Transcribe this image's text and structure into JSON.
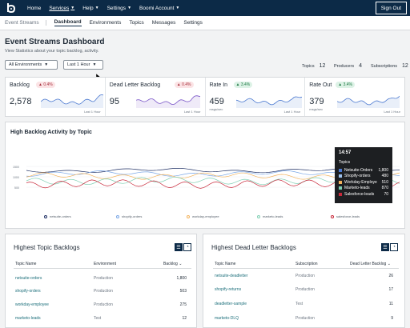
{
  "topnav": {
    "logo_icon": "boomi-b-logo-icon",
    "items": [
      {
        "label": "Home",
        "caret": false,
        "active": false
      },
      {
        "label": "Services",
        "caret": true,
        "active": true
      },
      {
        "label": "Help",
        "caret": true,
        "active": false
      },
      {
        "label": "Settings",
        "caret": true,
        "active": false
      },
      {
        "label": "Boomi Account",
        "caret": true,
        "active": false
      }
    ],
    "sign_out": "Sign Out"
  },
  "subnav": {
    "brand": "Event Streams",
    "tabs": [
      "Dashboard",
      "Environments",
      "Topics",
      "Messages",
      "Settings"
    ],
    "active": "Dashboard"
  },
  "page": {
    "title": "Event Streams Dashboard",
    "description": "View Statistics about your topic backlog, activity."
  },
  "filters": {
    "environment": "All Environments",
    "period": "Last 1 Hour"
  },
  "counts": [
    {
      "label": "Topics",
      "value": "12"
    },
    {
      "label": "Producers",
      "value": "4"
    },
    {
      "label": "Subscriptions",
      "value": "12"
    }
  ],
  "stats": [
    {
      "title": "Backlog",
      "change": "0.4%",
      "direction": "down",
      "value": "2,578",
      "unit": "",
      "period": "Last 1 Hour",
      "color": "#4a78d0"
    },
    {
      "title": "Dead Letter Backlog",
      "change": "0.4%",
      "direction": "down",
      "value": "95",
      "unit": "",
      "period": "Last 1 Hour",
      "color": "#7a56c8"
    },
    {
      "title": "Rate In",
      "change": "3.4%",
      "direction": "up",
      "value": "459",
      "unit": "msgs/sec",
      "period": "Last 1 Hour",
      "color": "#4a78d0"
    },
    {
      "title": "Rate Out",
      "change": "3.4%",
      "direction": "up",
      "value": "379",
      "unit": "msgs/sec",
      "period": "Last 1 Hour",
      "color": "#4a78d0"
    }
  ],
  "activity": {
    "title": "High Backlog Activity by Topic",
    "y_ticks": [
      "1500",
      "1000",
      "500"
    ],
    "legend": [
      {
        "name": "netsuite-orders",
        "color": "#1d2e63"
      },
      {
        "name": "shopify-orders",
        "color": "#7aa7e6"
      },
      {
        "name": "workday-employee",
        "color": "#f2b25c"
      },
      {
        "name": "marketo-leads",
        "color": "#7fcfb3"
      },
      {
        "name": "salesforce-leads",
        "color": "#c8283a"
      }
    ],
    "tooltip": {
      "time": "14:57",
      "heading": "Topics",
      "rows": [
        {
          "name": "Netsuite-Orders",
          "value": "1,800",
          "color": "#4a78d0"
        },
        {
          "name": "Shopify-orders",
          "value": "480",
          "color": "#9ec3f0"
        },
        {
          "name": "Workday-Employe",
          "value": "510",
          "color": "#f2b25c"
        },
        {
          "name": "Marketo-leads",
          "value": "870",
          "color": "#7fcfb3"
        },
        {
          "name": "Salesforce-leads",
          "value": "70",
          "color": "#c8283a"
        }
      ]
    }
  },
  "topic_backlogs": {
    "title": "Highest Topic Backlogs",
    "columns": [
      "Topic Name",
      "Environment",
      "Backlog"
    ],
    "rows": [
      {
        "name": "netsuite-orders",
        "env": "Production",
        "value": "1,800"
      },
      {
        "name": "shopify-orders",
        "env": "Production",
        "value": "503"
      },
      {
        "name": "workday-employee",
        "env": "Production",
        "value": "275"
      },
      {
        "name": "marketo-leads",
        "env": "Test",
        "value": "12"
      }
    ]
  },
  "dead_letter_backlogs": {
    "title": "Highest Dead Letter Backlogs",
    "columns": [
      "Topic Name",
      "Subscription",
      "Dead Letter Backlog"
    ],
    "rows": [
      {
        "name": "netsuite-deadletter",
        "sub": "Production",
        "value": "26"
      },
      {
        "name": "shopify-returns",
        "sub": "Production",
        "value": "17"
      },
      {
        "name": "deadletter-sample",
        "sub": "Test",
        "value": "11"
      },
      {
        "name": "marketo-DLQ",
        "sub": "Production",
        "value": "9"
      }
    ]
  }
}
